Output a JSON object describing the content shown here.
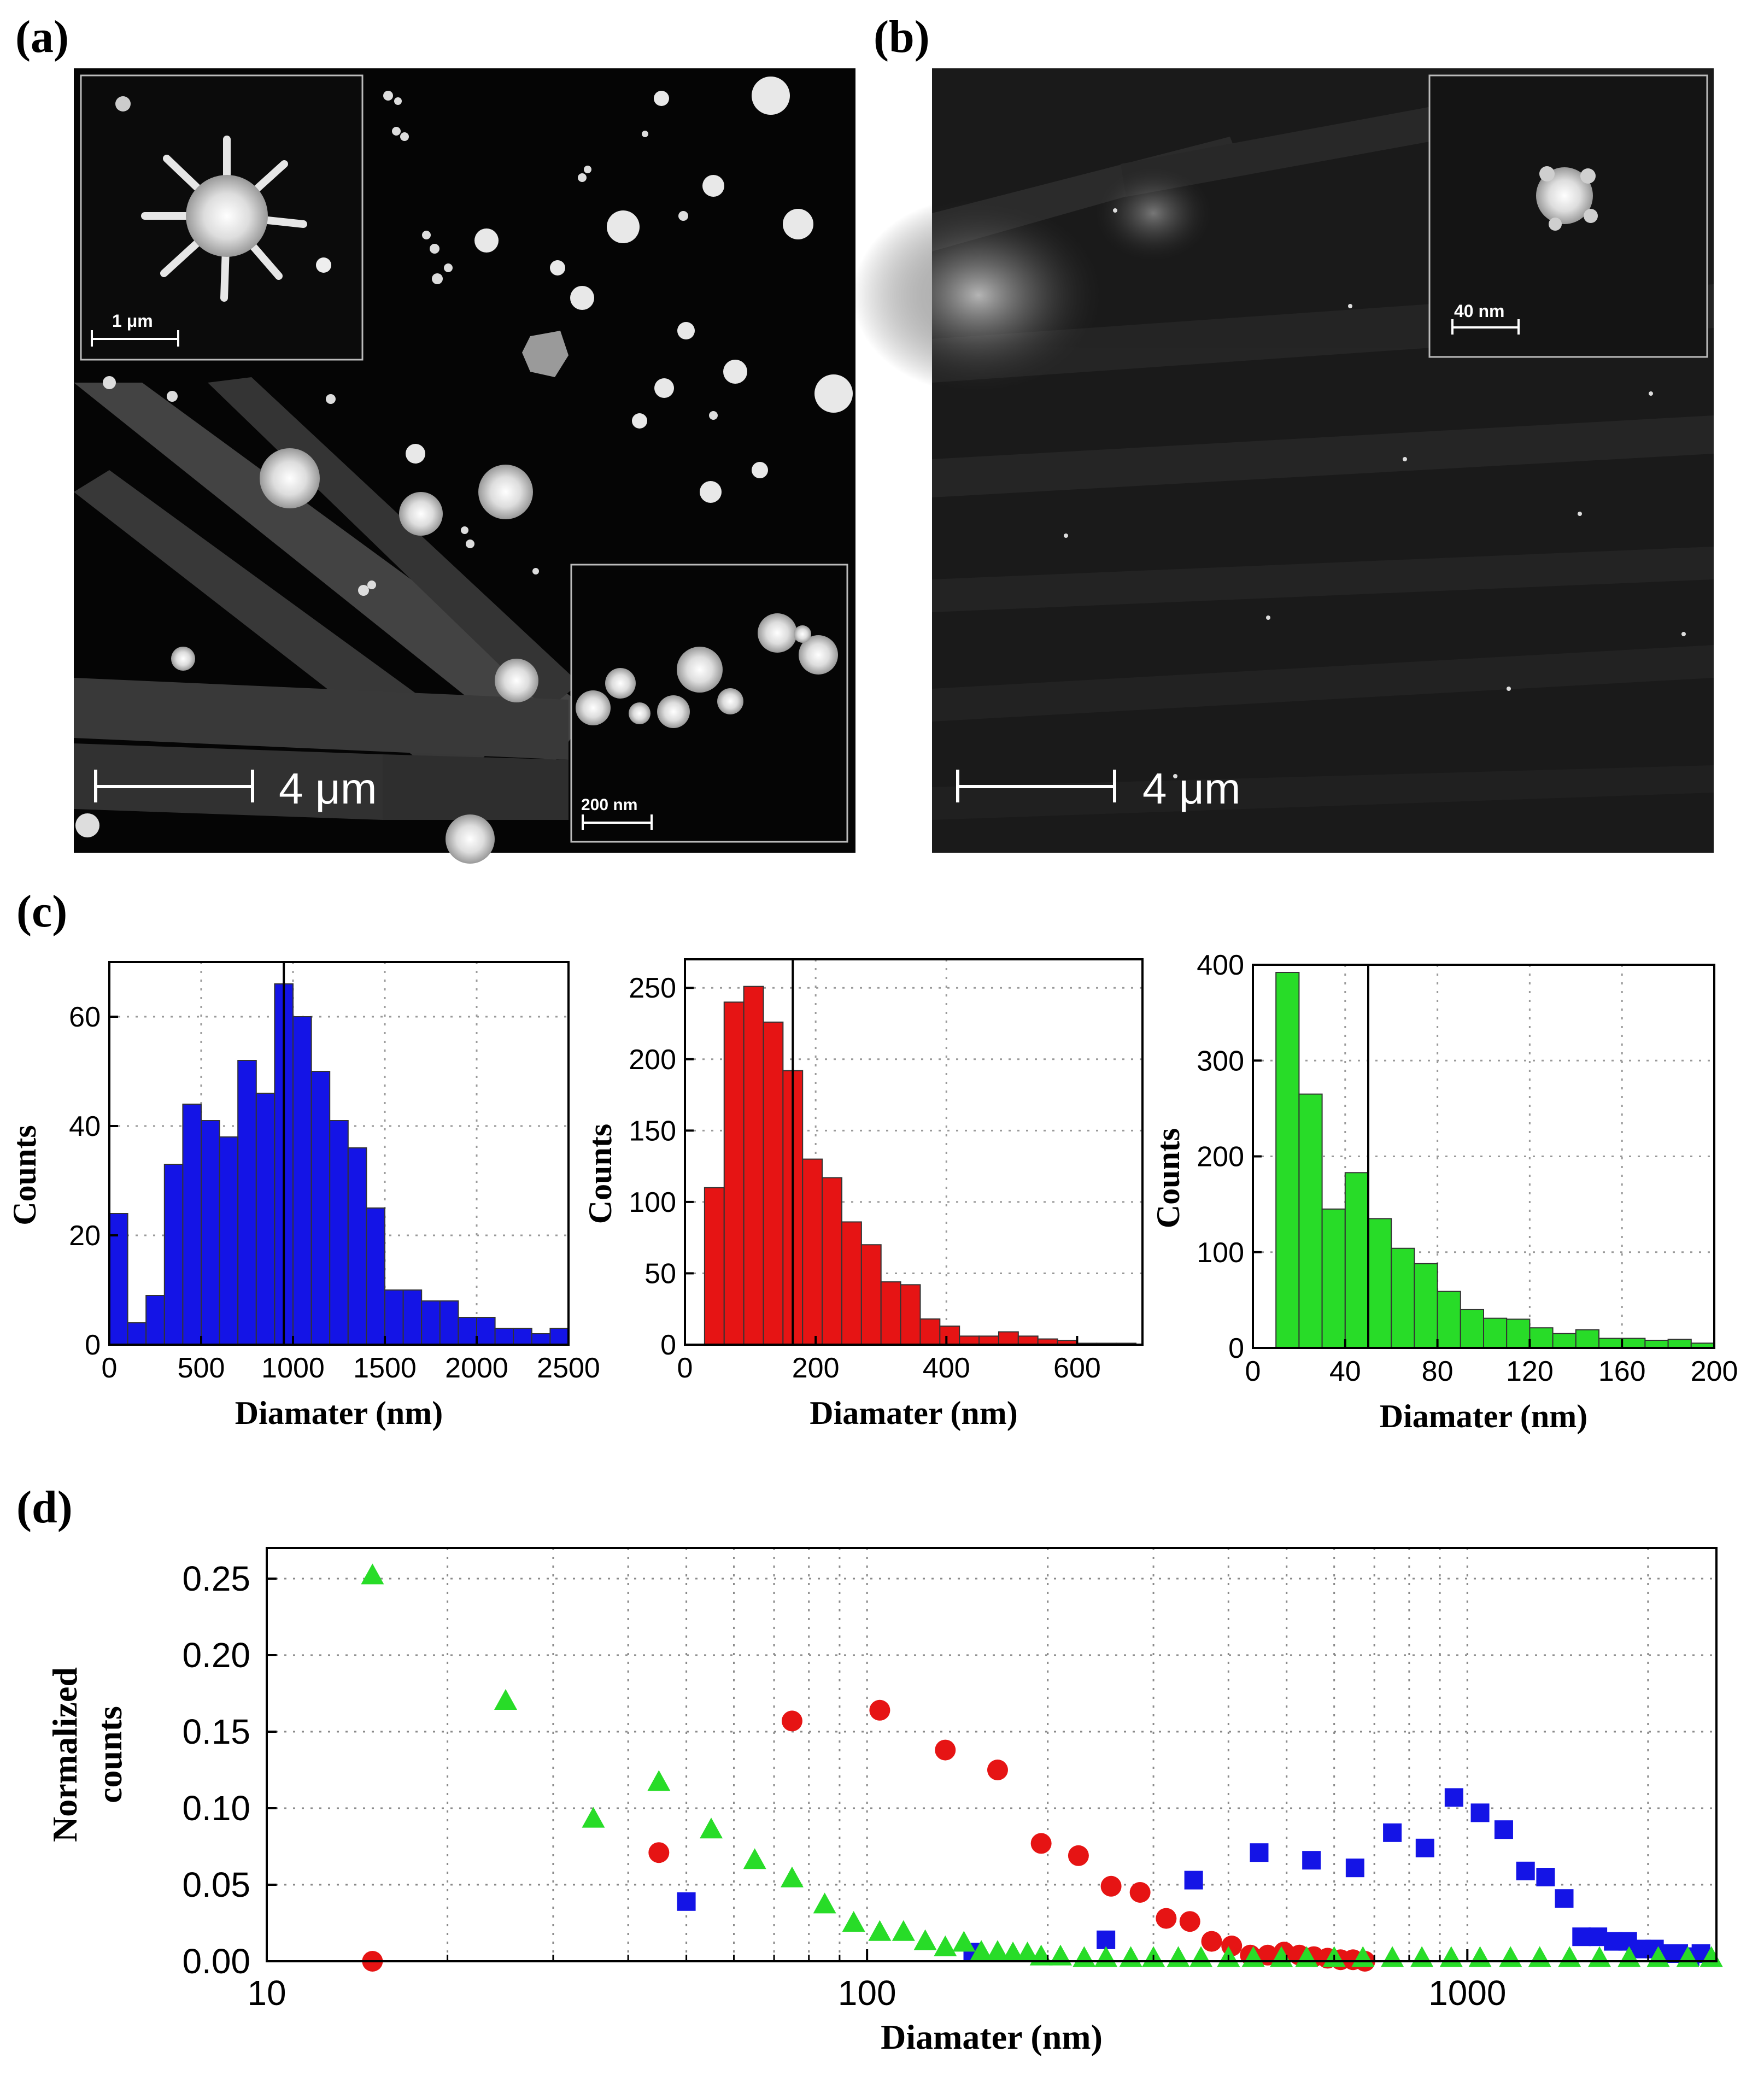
{
  "panels": {
    "a": {
      "label": "(a)",
      "scale_bar": "4 μm",
      "inset_top_scale": "1 μm",
      "inset_bottom_scale": "200 nm"
    },
    "b": {
      "label": "(b)",
      "scale_bar": "4 μm",
      "inset_scale": "40 nm"
    },
    "c": {
      "label": "(c)"
    },
    "d": {
      "label": "(d)"
    }
  },
  "colors": {
    "blue": "#1414e6",
    "red": "#e61414",
    "green": "#28dc28",
    "bar_edge": "#333333"
  },
  "chart_data": [
    {
      "id": "hist_blue",
      "type": "bar",
      "title": "",
      "xlabel": "Diamater (nm)",
      "ylabel": "Counts",
      "xlim": [
        0,
        2500
      ],
      "ylim": [
        0,
        70
      ],
      "xticks": [
        0,
        500,
        1000,
        1500,
        2000,
        2500
      ],
      "yticks": [
        0,
        20,
        40,
        60
      ],
      "bin_width": 100,
      "bin_starts": [
        0,
        100,
        200,
        300,
        400,
        500,
        600,
        700,
        800,
        900,
        1000,
        1100,
        1200,
        1300,
        1400,
        1500,
        1600,
        1700,
        1800,
        1900,
        2000,
        2100,
        2200,
        2300,
        2400
      ],
      "values": [
        24,
        4,
        9,
        33,
        44,
        41,
        38,
        52,
        46,
        66,
        60,
        50,
        41,
        36,
        25,
        10,
        10,
        8,
        8,
        5,
        5,
        3,
        3,
        2,
        3
      ],
      "mean_line": 950,
      "color": "#1414e6"
    },
    {
      "id": "hist_red",
      "type": "bar",
      "title": "",
      "xlabel": "Diamater (nm)",
      "ylabel": "Counts",
      "xlim": [
        0,
        700
      ],
      "ylim": [
        0,
        270
      ],
      "xticks": [
        0,
        200,
        400,
        600
      ],
      "yticks": [
        0,
        50,
        100,
        150,
        200,
        250
      ],
      "bin_width": 30,
      "bin_starts": [
        30,
        60,
        90,
        120,
        150,
        180,
        210,
        240,
        270,
        300,
        330,
        360,
        390,
        420,
        450,
        480,
        510,
        540,
        570,
        600,
        630,
        660
      ],
      "values": [
        110,
        240,
        251,
        226,
        192,
        130,
        117,
        86,
        70,
        44,
        42,
        18,
        13,
        6,
        6,
        9,
        6,
        4,
        3,
        1,
        1,
        1
      ],
      "mean_line": 165,
      "color": "#e61414"
    },
    {
      "id": "hist_green",
      "type": "bar",
      "title": "",
      "xlabel": "Diamater (nm)",
      "ylabel": "Counts",
      "xlim": [
        0,
        200
      ],
      "ylim": [
        0,
        400
      ],
      "xticks": [
        0,
        40,
        80,
        120,
        160,
        200
      ],
      "yticks": [
        0,
        100,
        200,
        300,
        400
      ],
      "bin_width": 10,
      "bin_starts": [
        10,
        20,
        30,
        40,
        50,
        60,
        70,
        80,
        90,
        100,
        110,
        120,
        130,
        140,
        150,
        160,
        170,
        180,
        190
      ],
      "values": [
        392,
        265,
        145,
        183,
        135,
        104,
        88,
        59,
        40,
        31,
        30,
        21,
        15,
        19,
        10,
        10,
        8,
        9,
        5
      ],
      "mean_line": 50,
      "color": "#28dc28"
    },
    {
      "id": "scatter_norm",
      "type": "scatter",
      "title": "",
      "xlabel": "Diamater (nm)",
      "ylabel": [
        "Normalized",
        "counts"
      ],
      "xscale": "log",
      "xlim": [
        10,
        2600
      ],
      "ylim": [
        0,
        0.27
      ],
      "xticks": [
        10,
        100,
        1000
      ],
      "yticks": [
        0.0,
        0.05,
        0.1,
        0.15,
        0.2,
        0.25
      ],
      "ytick_labels": [
        "0.00",
        "0.05",
        "0.10",
        "0.15",
        "0.20",
        "0.25"
      ],
      "series": [
        {
          "name": "blue",
          "marker": "square",
          "color": "#1414e6",
          "x": [
            50,
            150,
            250,
            350,
            450,
            550,
            650,
            750,
            850,
            950,
            1050,
            1150,
            1250,
            1350,
            1450,
            1550,
            1650,
            1750,
            1850,
            1950,
            2050,
            2150,
            2250,
            2350,
            2450
          ],
          "y": [
            0.039,
            0.006,
            0.014,
            0.053,
            0.071,
            0.066,
            0.061,
            0.084,
            0.074,
            0.107,
            0.097,
            0.086,
            0.059,
            0.055,
            0.041,
            0.016,
            0.016,
            0.013,
            0.013,
            0.008,
            0.008,
            0.005,
            0.005,
            0.003,
            0.005
          ]
        },
        {
          "name": "red",
          "marker": "circle",
          "color": "#e61414",
          "x": [
            15,
            45,
            75,
            105,
            135,
            165,
            195,
            225,
            255,
            285,
            315,
            345,
            375,
            405,
            435,
            465,
            495,
            525,
            555,
            585,
            615,
            645,
            675
          ],
          "y": [
            0.0,
            0.071,
            0.157,
            0.164,
            0.138,
            0.125,
            0.077,
            0.069,
            0.049,
            0.045,
            0.028,
            0.026,
            0.013,
            0.01,
            0.004,
            0.004,
            0.006,
            0.004,
            0.003,
            0.002,
            0.001,
            0.001,
            0.0
          ]
        },
        {
          "name": "green",
          "marker": "triangle",
          "color": "#28dc28",
          "x": [
            15,
            25,
            35,
            45,
            55,
            65,
            75,
            85,
            95,
            105,
            115,
            125,
            135,
            145,
            155,
            165,
            175,
            185,
            195,
            210,
            230,
            250,
            275,
            300,
            330,
            360,
            400,
            440,
            490,
            540,
            600,
            670,
            750,
            840,
            940,
            1050,
            1180,
            1320,
            1480,
            1660,
            1860,
            2080,
            2330,
            2550
          ],
          "y": [
            0.252,
            0.17,
            0.093,
            0.117,
            0.086,
            0.066,
            0.054,
            0.037,
            0.025,
            0.019,
            0.019,
            0.013,
            0.009,
            0.012,
            0.006,
            0.006,
            0.005,
            0.005,
            0.003,
            0.003,
            0.002,
            0.002,
            0.002,
            0.002,
            0.002,
            0.002,
            0.002,
            0.002,
            0.002,
            0.002,
            0.002,
            0.002,
            0.002,
            0.002,
            0.002,
            0.002,
            0.002,
            0.002,
            0.002,
            0.002,
            0.002,
            0.002,
            0.002,
            0.002
          ]
        }
      ]
    }
  ]
}
